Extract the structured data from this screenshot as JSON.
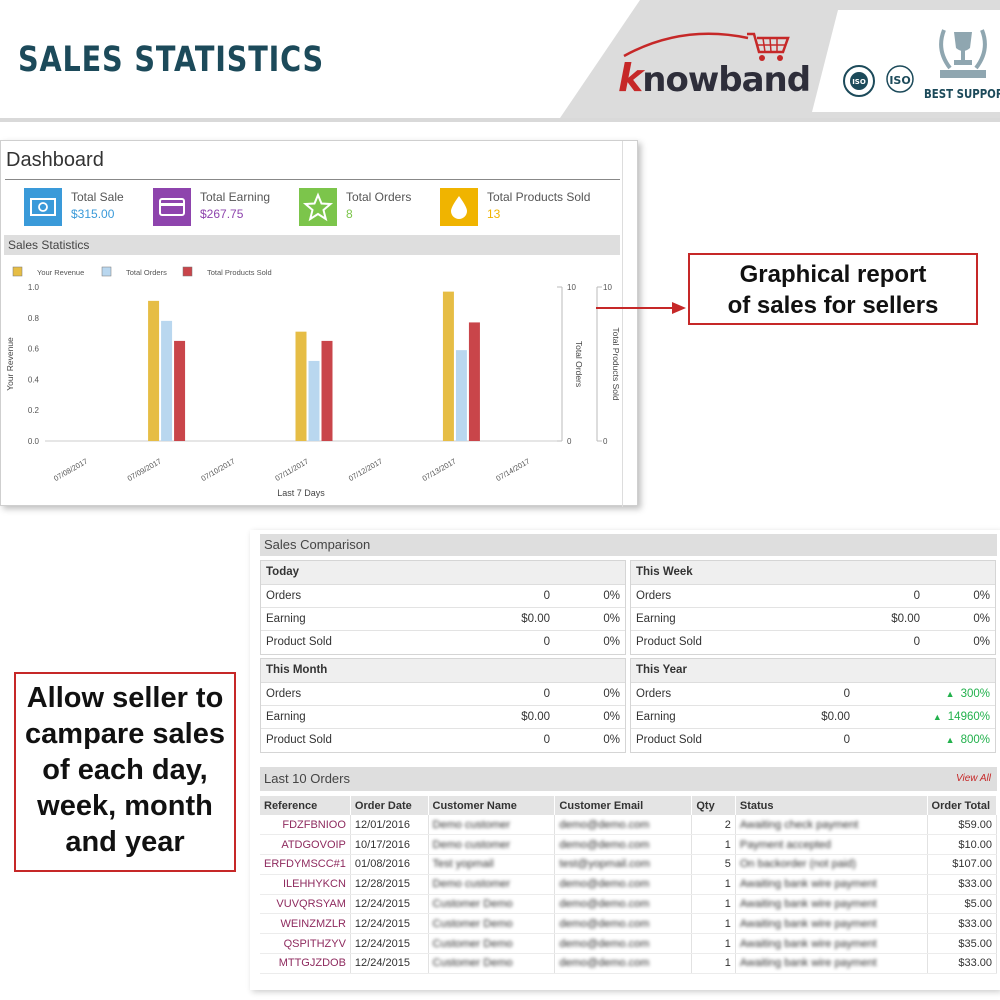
{
  "banner": {
    "title": "SALES STATISTICS",
    "brand_k": "k",
    "brand_rest": "nowband",
    "best_support": "BEST SUPPORT",
    "cert_1": "ISO",
    "cert_2": "ISO"
  },
  "dashboard": {
    "title": "Dashboard",
    "stats": [
      {
        "label": "Total Sale",
        "value": "$315.00",
        "color": "#3a9ad9",
        "icon": "money-icon"
      },
      {
        "label": "Total Earning",
        "value": "$267.75",
        "color": "#8e44ad",
        "icon": "credit-card-icon"
      },
      {
        "label": "Total Orders",
        "value": "8",
        "color": "#7cc54b",
        "icon": "star-icon"
      },
      {
        "label": "Total Products Sold",
        "value": "13",
        "color": "#f0b400",
        "icon": "drop-icon"
      }
    ],
    "sales_statistics_label": "Sales Statistics"
  },
  "chart_data": {
    "type": "bar",
    "categories": [
      "07/08/2017",
      "07/09/2017",
      "07/10/2017",
      "07/11/2017",
      "07/12/2017",
      "07/13/2017",
      "07/14/2017"
    ],
    "series": [
      {
        "name": "Your Revenue",
        "color": "#e6bd45",
        "axis": "left",
        "values": [
          null,
          0.91,
          null,
          0.71,
          null,
          0.97,
          null
        ]
      },
      {
        "name": "Total Orders",
        "color": "#b9d7ef",
        "axis": "right1",
        "values": [
          null,
          7.8,
          null,
          5.2,
          null,
          5.9,
          null
        ]
      },
      {
        "name": "Total Products Sold",
        "color": "#c9454a",
        "axis": "right2",
        "values": [
          null,
          6.5,
          null,
          6.5,
          null,
          7.7,
          null
        ]
      }
    ],
    "xlabel": "Last 7 Days",
    "ylabel": "Your Revenue",
    "ylabel_right1": "Total Orders",
    "ylabel_right2": "Total Products Sold",
    "ylim": [
      0,
      1.0
    ],
    "yticks": [
      "0.0",
      "0.2",
      "0.4",
      "0.6",
      "0.8",
      "1.0"
    ],
    "ylim_right1": [
      0,
      10
    ],
    "ylim_right2": [
      0,
      10
    ],
    "right_ticks_top": "10",
    "right_ticks_bottom": "0",
    "legend_position": "top-left",
    "grid": false
  },
  "callouts": {
    "graph_line1": "Graphical report",
    "graph_line2": "of sales for sellers",
    "compare_lines": [
      "Allow seller to",
      "campare sales",
      "of each day,",
      "week, month",
      "and year"
    ]
  },
  "comparison": {
    "title": "Sales Comparison",
    "periods": [
      {
        "title": "Today",
        "rows": [
          {
            "label": "Orders",
            "value": "0",
            "pct": "0%",
            "up": false
          },
          {
            "label": "Earning",
            "value": "$0.00",
            "pct": "0%",
            "up": false
          },
          {
            "label": "Product Sold",
            "value": "0",
            "pct": "0%",
            "up": false
          }
        ]
      },
      {
        "title": "This Week",
        "rows": [
          {
            "label": "Orders",
            "value": "0",
            "pct": "0%",
            "up": false
          },
          {
            "label": "Earning",
            "value": "$0.00",
            "pct": "0%",
            "up": false
          },
          {
            "label": "Product Sold",
            "value": "0",
            "pct": "0%",
            "up": false
          }
        ]
      },
      {
        "title": "This Month",
        "rows": [
          {
            "label": "Orders",
            "value": "0",
            "pct": "0%",
            "up": false
          },
          {
            "label": "Earning",
            "value": "$0.00",
            "pct": "0%",
            "up": false
          },
          {
            "label": "Product Sold",
            "value": "0",
            "pct": "0%",
            "up": false
          }
        ]
      },
      {
        "title": "This Year",
        "rows": [
          {
            "label": "Orders",
            "value": "0",
            "pct": "300%",
            "up": true
          },
          {
            "label": "Earning",
            "value": "$0.00",
            "pct": "14960%",
            "up": true
          },
          {
            "label": "Product Sold",
            "value": "0",
            "pct": "800%",
            "up": true
          }
        ]
      }
    ]
  },
  "orders": {
    "title": "Last 10 Orders",
    "view_all": "View All",
    "columns": [
      "Reference",
      "Order Date",
      "Customer Name",
      "Customer Email",
      "Qty",
      "Status",
      "Order Total"
    ],
    "rows": [
      {
        "ref": "FDZFBNIOO",
        "date": "12/01/2016",
        "name": "Demo customer",
        "email": "demo@demo.com",
        "qty": "2",
        "status": "Awaiting check payment",
        "total": "$59.00"
      },
      {
        "ref": "ATDGOVOIP",
        "date": "10/17/2016",
        "name": "Demo customer",
        "email": "demo@demo.com",
        "qty": "1",
        "status": "Payment accepted",
        "total": "$10.00"
      },
      {
        "ref": "ERFDYMSCC#1",
        "date": "01/08/2016",
        "name": "Test yopmail",
        "email": "test@yopmail.com",
        "qty": "5",
        "status": "On backorder (not paid)",
        "total": "$107.00"
      },
      {
        "ref": "ILEHHYKCN",
        "date": "12/28/2015",
        "name": "Demo customer",
        "email": "demo@demo.com",
        "qty": "1",
        "status": "Awaiting bank wire payment",
        "total": "$33.00"
      },
      {
        "ref": "VUVQRSYAM",
        "date": "12/24/2015",
        "name": "Customer Demo",
        "email": "demo@demo.com",
        "qty": "1",
        "status": "Awaiting bank wire payment",
        "total": "$5.00"
      },
      {
        "ref": "WEINZMZLR",
        "date": "12/24/2015",
        "name": "Customer Demo",
        "email": "demo@demo.com",
        "qty": "1",
        "status": "Awaiting bank wire payment",
        "total": "$33.00"
      },
      {
        "ref": "QSPITHZYV",
        "date": "12/24/2015",
        "name": "Customer Demo",
        "email": "demo@demo.com",
        "qty": "1",
        "status": "Awaiting bank wire payment",
        "total": "$35.00"
      },
      {
        "ref": "MTTGJZDOB",
        "date": "12/24/2015",
        "name": "Customer Demo",
        "email": "demo@demo.com",
        "qty": "1",
        "status": "Awaiting bank wire payment",
        "total": "$33.00"
      }
    ]
  }
}
